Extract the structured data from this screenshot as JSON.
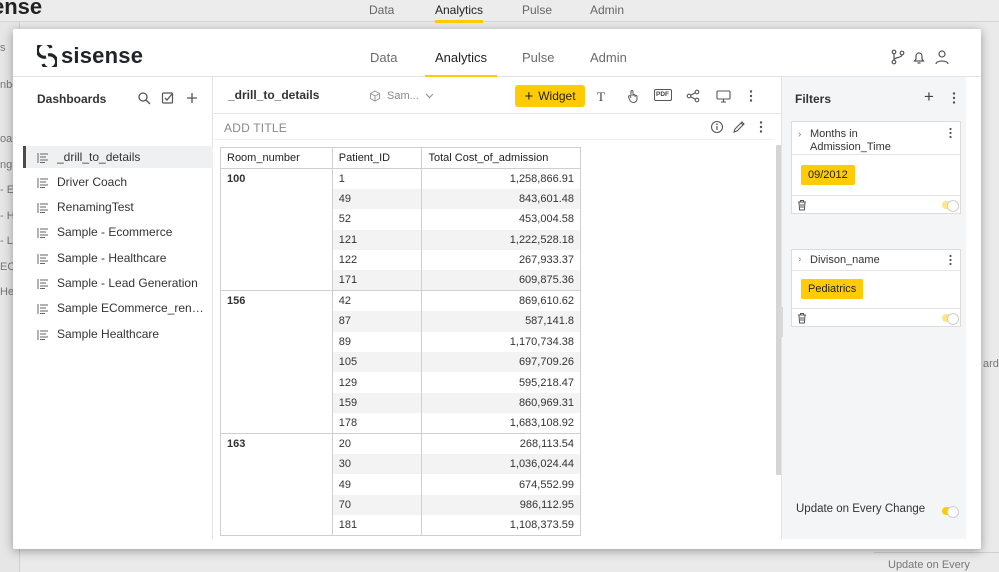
{
  "background": {
    "logo_fragment": "ense",
    "nav": [
      "Data",
      "Analytics",
      "Pulse",
      "Admin"
    ],
    "side_fragments": [
      "s",
      "nbo",
      "oa",
      "ng",
      "- E",
      "- H",
      "- L",
      "EC",
      "He"
    ],
    "right_fragment": "ard",
    "bottom_fragment": "Update on Every Chang"
  },
  "header": {
    "logo_text": "sisense",
    "nav": [
      {
        "label": "Data",
        "active": false
      },
      {
        "label": "Analytics",
        "active": true
      },
      {
        "label": "Pulse",
        "active": false
      },
      {
        "label": "Admin",
        "active": false
      }
    ],
    "icons": [
      "branch-icon",
      "bell-icon",
      "user-icon"
    ]
  },
  "left_panel": {
    "title": "Dashboards",
    "icons": [
      "search-icon",
      "checkbox-icon",
      "plus-icon"
    ],
    "dashboards": [
      {
        "label": "_drill_to_details",
        "active": true
      },
      {
        "label": "Driver Coach",
        "active": false
      },
      {
        "label": "RenamingTest",
        "active": false
      },
      {
        "label": "Sample - Ecommerce",
        "active": false
      },
      {
        "label": "Sample - Healthcare",
        "active": false
      },
      {
        "label": "Sample - Lead Generation",
        "active": false
      },
      {
        "label": "Sample ECommerce_renaming",
        "active": false
      },
      {
        "label": "Sample Healthcare",
        "active": false
      }
    ]
  },
  "toolbar": {
    "dashboard_title": "_drill_to_details",
    "datasource_label": "Sam...",
    "widget_button": "Widget",
    "widget_plus": "+",
    "text_icon": "T",
    "pdf_icon": "PDF"
  },
  "widget": {
    "add_title": "ADD TITLE",
    "columns": [
      "Room_number",
      "Patient_ID",
      "Total Cost_of_admission"
    ],
    "groups": [
      {
        "room": "100",
        "rows": [
          [
            "1",
            "1,258,866.91"
          ],
          [
            "49",
            "843,601.48"
          ],
          [
            "52",
            "453,004.58"
          ],
          [
            "121",
            "1,222,528.18"
          ],
          [
            "122",
            "267,933.37"
          ],
          [
            "171",
            "609,875.36"
          ]
        ]
      },
      {
        "room": "156",
        "rows": [
          [
            "42",
            "869,610.62"
          ],
          [
            "87",
            "587,141.8"
          ],
          [
            "89",
            "1,170,734.38"
          ],
          [
            "105",
            "697,709.26"
          ],
          [
            "129",
            "595,218.47"
          ],
          [
            "159",
            "860,969.31"
          ],
          [
            "178",
            "1,683,108.92"
          ]
        ]
      },
      {
        "room": "163",
        "rows": [
          [
            "20",
            "268,113.54"
          ],
          [
            "30",
            "1,036,024.44"
          ],
          [
            "49",
            "674,552.99"
          ],
          [
            "70",
            "986,112.95"
          ],
          [
            "181",
            "1,108,373.59"
          ]
        ]
      }
    ]
  },
  "filters": {
    "title": "Filters",
    "plus": "+",
    "items": [
      {
        "name": "Months in Admission_Time",
        "value": "09/2012"
      },
      {
        "name": "Divison_name",
        "value": "Pediatrics"
      }
    ],
    "update_label": "Update on Every Change",
    "accent": "#ffcb05"
  }
}
